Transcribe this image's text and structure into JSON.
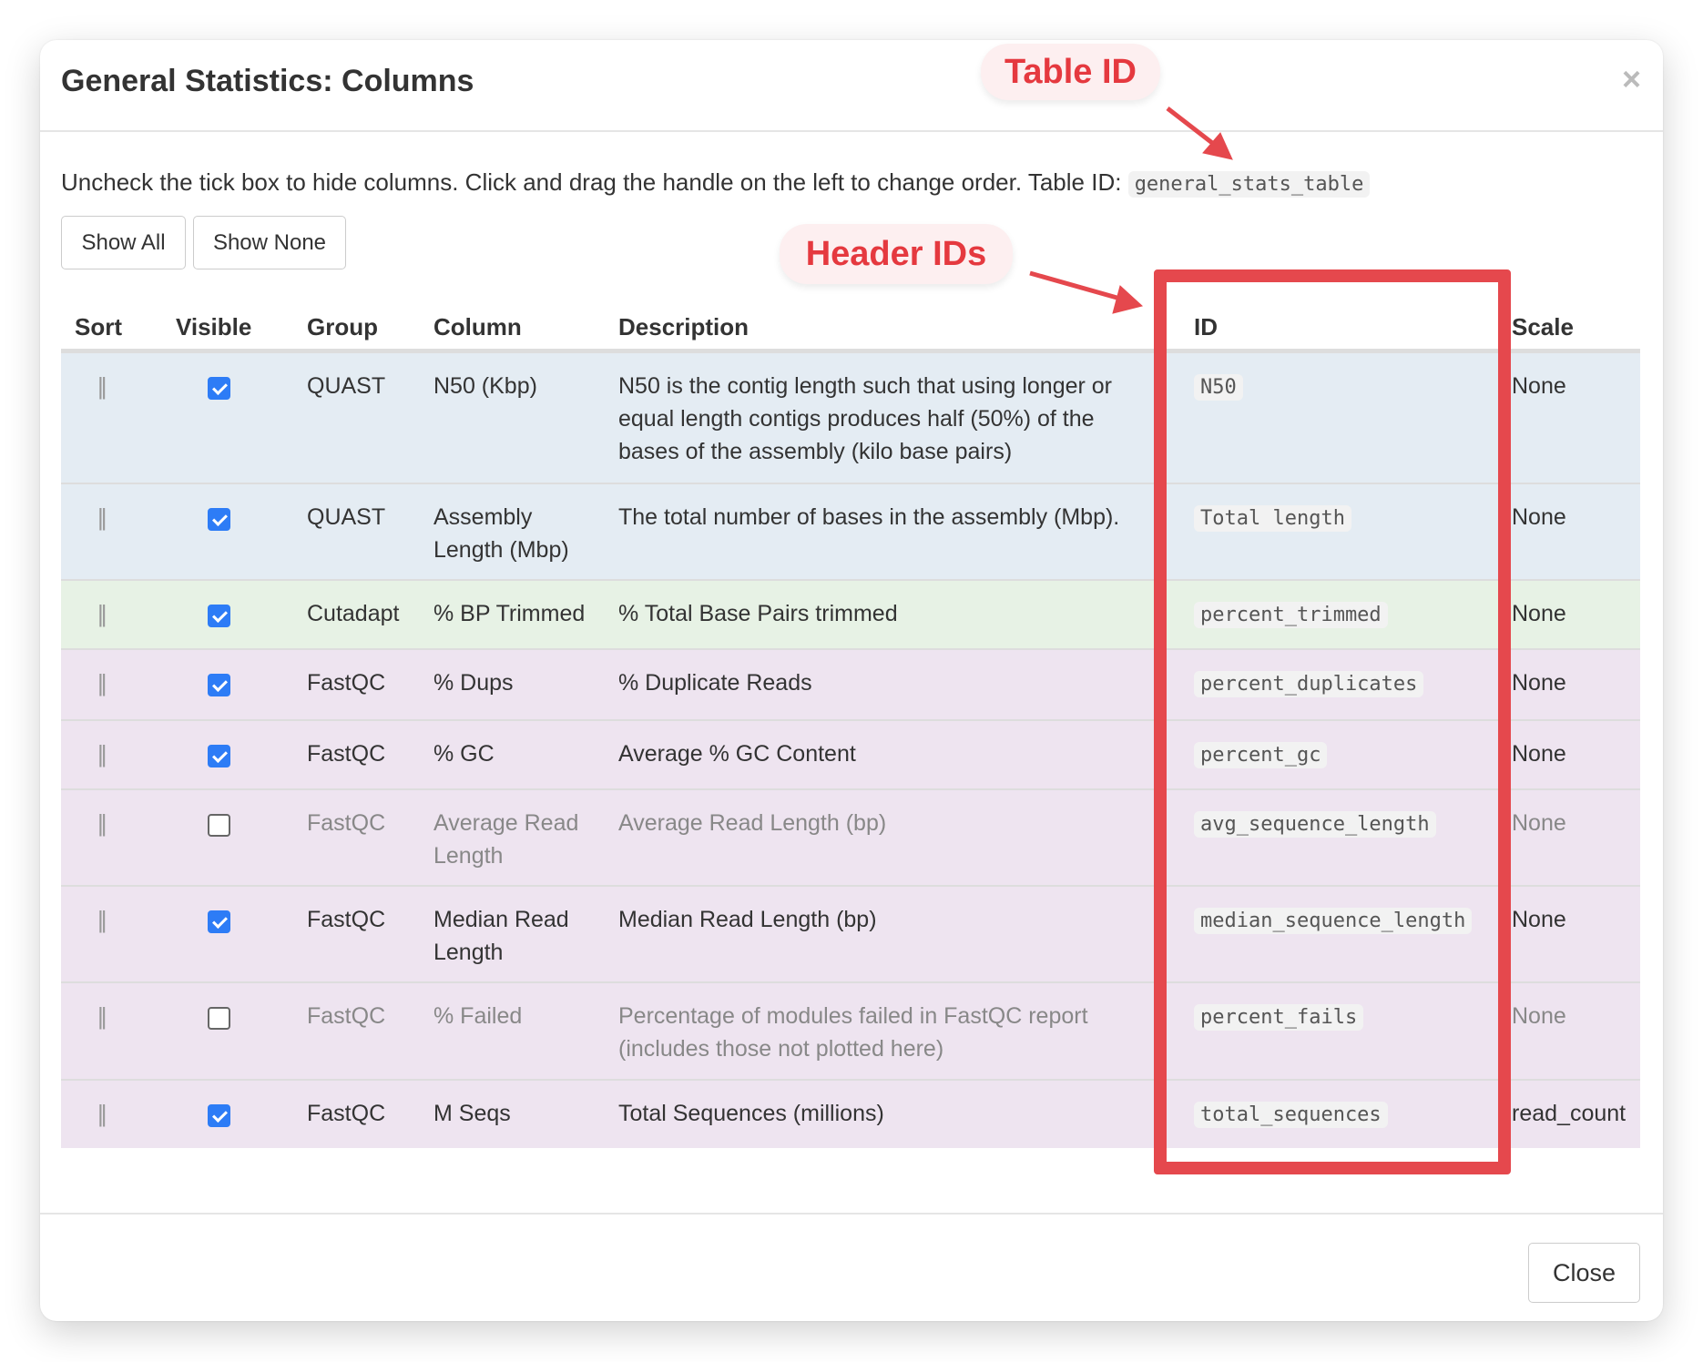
{
  "modal": {
    "title": "General Statistics: Columns",
    "close_x": "×",
    "intro": "Uncheck the tick box to hide columns. Click and drag the handle on the left to change order. Table ID:",
    "table_id": "general_stats_table",
    "show_all": "Show All",
    "show_none": "Show None",
    "close": "Close"
  },
  "annotations": {
    "table_id": "Table ID",
    "header_ids": "Header IDs",
    "color": "#e5484d"
  },
  "headers": [
    "Sort",
    "Visible",
    "Group",
    "Column",
    "Description",
    "ID",
    "Scale"
  ],
  "rows": [
    {
      "handle": "||",
      "visible": true,
      "group": "QUAST",
      "column": "N50 (Kbp)",
      "description": "N50 is the contig length such that using longer or equal length contigs produces half (50%) of the bases of the assembly (kilo base pairs)",
      "id": "N50",
      "scale": "None",
      "color": "#e4ecf3"
    },
    {
      "handle": "||",
      "visible": true,
      "group": "QUAST",
      "column": "Assembly Length (Mbp)",
      "description": "The total number of bases in the assembly (Mbp).",
      "id": "Total length",
      "scale": "None",
      "color": "#e4ecf3"
    },
    {
      "handle": "||",
      "visible": true,
      "group": "Cutadapt",
      "column": "% BP Trimmed",
      "description": "% Total Base Pairs trimmed",
      "id": "percent_trimmed",
      "scale": "None",
      "color": "#e7f2e5"
    },
    {
      "handle": "||",
      "visible": true,
      "group": "FastQC",
      "column": "% Dups",
      "description": "% Duplicate Reads",
      "id": "percent_duplicates",
      "scale": "None",
      "color": "#eee4f0"
    },
    {
      "handle": "||",
      "visible": true,
      "group": "FastQC",
      "column": "% GC",
      "description": "Average % GC Content",
      "id": "percent_gc",
      "scale": "None",
      "color": "#eee4f0"
    },
    {
      "handle": "||",
      "visible": false,
      "group": "FastQC",
      "column": "Average Read Length",
      "description": "Average Read Length (bp)",
      "id": "avg_sequence_length",
      "scale": "None",
      "color": "#eee4f0"
    },
    {
      "handle": "||",
      "visible": true,
      "group": "FastQC",
      "column": "Median Read Length",
      "description": "Median Read Length (bp)",
      "id": "median_sequence_length",
      "scale": "None",
      "color": "#eee4f0"
    },
    {
      "handle": "||",
      "visible": false,
      "group": "FastQC",
      "column": "% Failed",
      "description": "Percentage of modules failed in FastQC report (includes those not plotted here)",
      "id": "percent_fails",
      "scale": "None",
      "color": "#eee4f0"
    },
    {
      "handle": "||",
      "visible": true,
      "group": "FastQC",
      "column": "M Seqs",
      "description": "Total Sequences (millions)",
      "id": "total_sequences",
      "scale": "read_count",
      "color": "#eee4f0"
    }
  ]
}
